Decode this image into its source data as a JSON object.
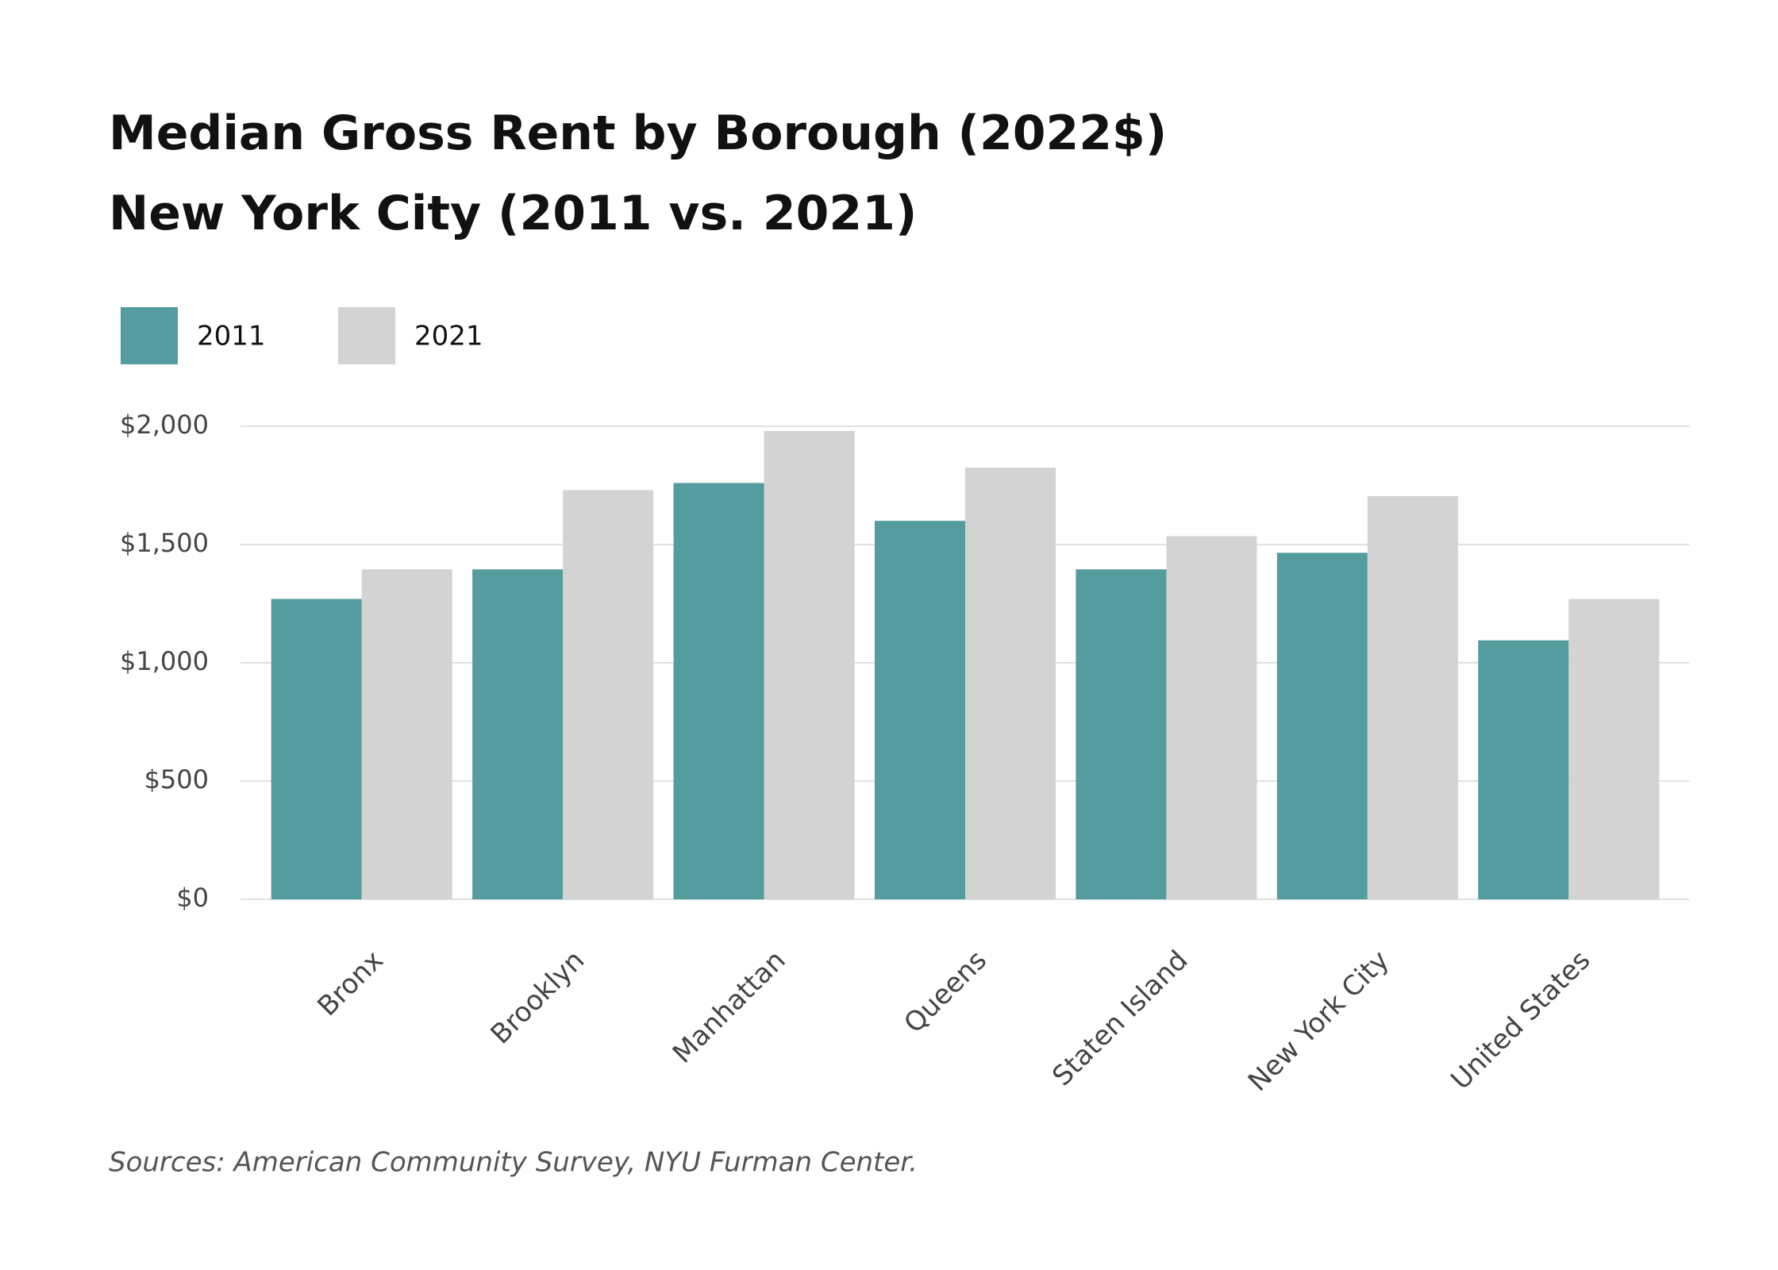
{
  "chart_data": {
    "type": "bar",
    "title": "Median Gross Rent by Borough (2022$)",
    "subtitle": "New York City (2011 vs. 2021)",
    "categories": [
      "Bronx",
      "Brooklyn",
      "Manhattan",
      "Queens",
      "Staten Island",
      "New York City",
      "United States"
    ],
    "series": [
      {
        "name": "2011",
        "color": "#559c9e",
        "values": [
          1270,
          1395,
          1760,
          1600,
          1395,
          1465,
          1095
        ]
      },
      {
        "name": "2021",
        "color": "#d3d3d3",
        "values": [
          1395,
          1730,
          1980,
          1825,
          1535,
          1705,
          1270
        ]
      }
    ],
    "ylim": [
      0,
      2000
    ],
    "yticks": [
      {
        "value": 0,
        "label": "$0"
      },
      {
        "value": 500,
        "label": "$500"
      },
      {
        "value": 1000,
        "label": "$1,000"
      },
      {
        "value": 1500,
        "label": "$1,500"
      },
      {
        "value": 2000,
        "label": "$2,000"
      }
    ],
    "grid": true,
    "source": "Sources: American Community Survey, NYU Furman Center."
  }
}
